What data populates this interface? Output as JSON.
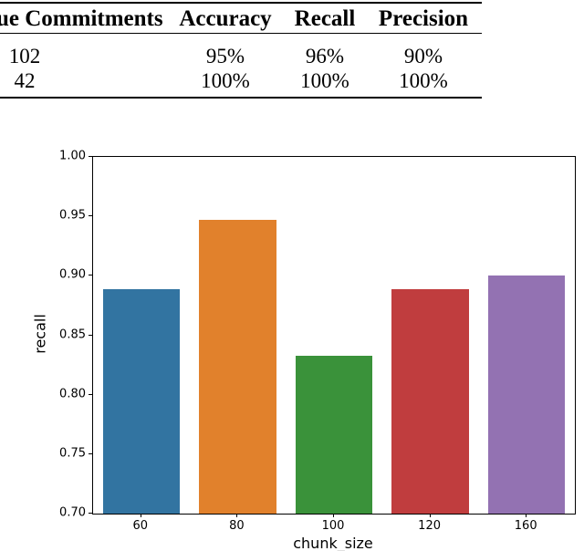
{
  "table": {
    "headers": [
      "ue Commitments",
      "Accuracy",
      "Recall",
      "Precision"
    ],
    "rows": [
      [
        "102",
        "95%",
        "96%",
        "90%"
      ],
      [
        "42",
        "100%",
        "100%",
        "100%"
      ]
    ]
  },
  "chart_data": {
    "type": "bar",
    "categories": [
      "60",
      "80",
      "100",
      "120",
      "160"
    ],
    "values": [
      0.889,
      0.947,
      0.833,
      0.889,
      0.9
    ],
    "bar_colors": [
      "#3274a1",
      "#e1812c",
      "#3a923a",
      "#c03d3e",
      "#9372b2"
    ],
    "title": "",
    "xlabel": "chunk_size",
    "ylabel": "recall",
    "ylim": [
      0.7,
      1.0
    ],
    "yticks": [
      "1.00",
      "0.95",
      "0.90",
      "0.85",
      "0.80",
      "0.75",
      "0.70"
    ],
    "grid": false,
    "legend_position": "none",
    "bar_width_fraction": 0.8
  }
}
